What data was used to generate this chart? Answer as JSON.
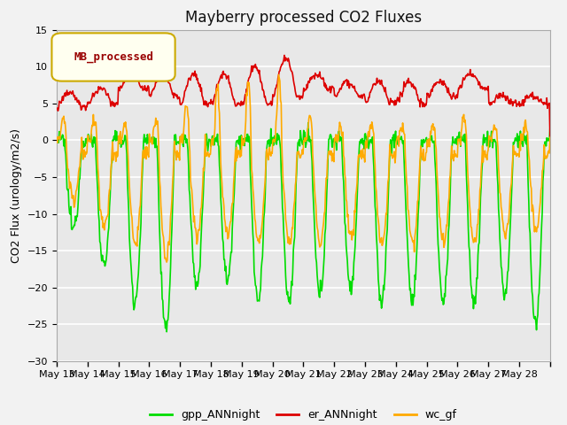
{
  "title": "Mayberry processed CO2 Fluxes",
  "ylabel": "CO2 Flux (urology/m2/s)",
  "legend_label": "MB_processed",
  "series": [
    "gpp_ANNnight",
    "er_ANNnight",
    "wc_gf"
  ],
  "colors": [
    "#00dd00",
    "#dd0000",
    "#ffaa00"
  ],
  "linewidths": [
    1.2,
    1.2,
    1.2
  ],
  "ylim": [
    -30,
    15
  ],
  "yticks": [
    -30,
    -25,
    -20,
    -15,
    -10,
    -5,
    0,
    5,
    10,
    15
  ],
  "n_days": 16,
  "start_day": 13,
  "end_day": 28,
  "points_per_day": 48,
  "bg_color": "#e8e8e8",
  "grid_color": "#ffffff",
  "fig_bg_color": "#f2f2f2",
  "legend_box_color": "#fffff0",
  "legend_box_edge": "#ccaa00",
  "legend_text_color": "#990000",
  "title_fontsize": 12,
  "tick_fontsize": 8,
  "ylabel_fontsize": 9,
  "legend_fontsize": 9
}
